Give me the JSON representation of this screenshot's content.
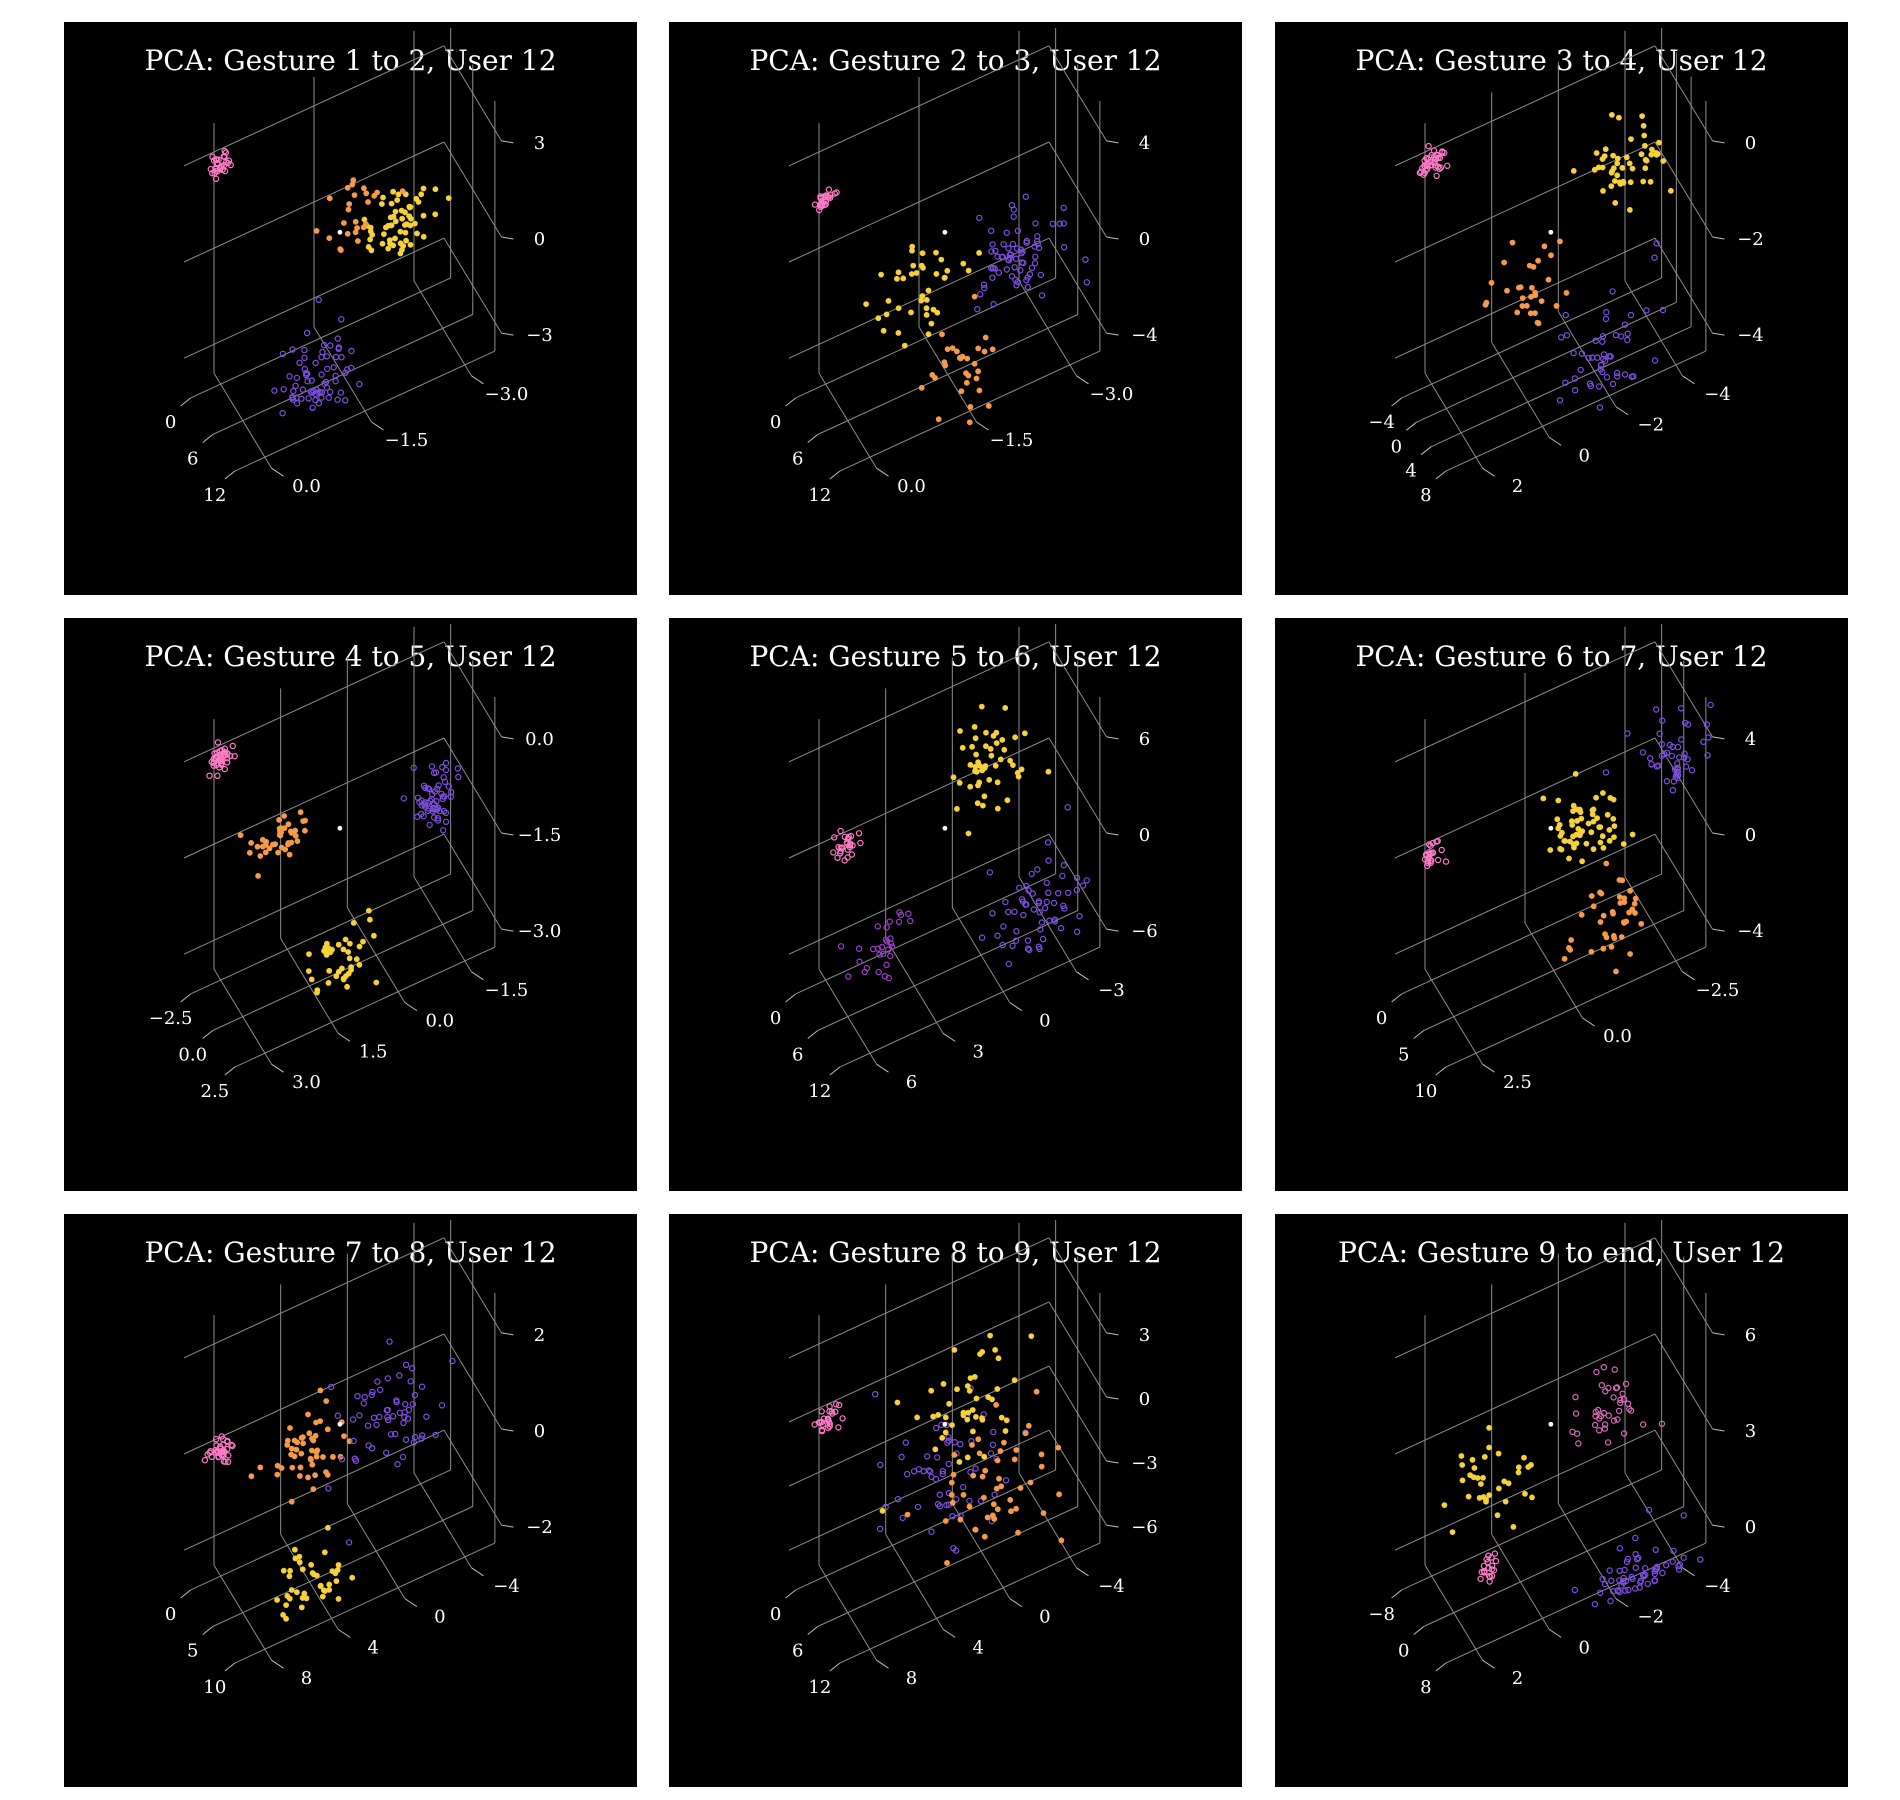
{
  "chart_data": [
    {
      "type": "scatter",
      "title": "PCA: Gesture 1 to 2, User 12",
      "x_ticks": [
        "0",
        "6",
        "12"
      ],
      "y_ticks": [
        "0.0",
        "−1.5",
        "−3.0"
      ],
      "z_ticks": [
        "3",
        "0",
        "−3"
      ],
      "clusters": [
        {
          "color": "#ff7ac8",
          "x": 0,
          "y": 0,
          "z": 3,
          "count": 30,
          "spread": 0.25
        },
        {
          "color": "#f5d13c",
          "x": 6,
          "y": -2.4,
          "z": 0,
          "count": 60,
          "spread": 0.8
        },
        {
          "color": "#7e4fe0",
          "x": 7,
          "y": -1.0,
          "z": -3.5,
          "count": 70,
          "spread": 1.0
        },
        {
          "color": "#f59a4a",
          "x": 4,
          "y": -1.8,
          "z": 0.5,
          "count": 25,
          "spread": 0.8
        }
      ]
    },
    {
      "type": "scatter",
      "title": "PCA: Gesture 2 to 3, User 12",
      "x_ticks": [
        "0",
        "6",
        "12"
      ],
      "y_ticks": [
        "0.0",
        "−1.5",
        "−3.0"
      ],
      "z_ticks": [
        "4",
        "0",
        "−4"
      ],
      "clusters": [
        {
          "color": "#ff7ac8",
          "x": 0,
          "y": 0,
          "z": 2.5,
          "count": 25,
          "spread": 0.25
        },
        {
          "color": "#7e4fe0",
          "x": 8,
          "y": -2.5,
          "z": -1,
          "count": 70,
          "spread": 1.0
        },
        {
          "color": "#f5d13c",
          "x": 4,
          "y": -1.2,
          "z": -2,
          "count": 40,
          "spread": 1.0
        },
        {
          "color": "#f59a4a",
          "x": 10,
          "y": -1.5,
          "z": -4,
          "count": 30,
          "spread": 1.0
        }
      ]
    },
    {
      "type": "scatter",
      "title": "PCA: Gesture 3 to 4, User 12",
      "x_ticks": [
        "−4",
        "0",
        "4",
        "8"
      ],
      "y_ticks": [
        "2",
        "0",
        "−2",
        "−4"
      ],
      "z_ticks": [
        "0",
        "−2",
        "−4"
      ],
      "clusters": [
        {
          "color": "#ff7ac8",
          "x": -4,
          "y": 2,
          "z": 0,
          "count": 40,
          "spread": 0.35
        },
        {
          "color": "#f5d13c",
          "x": 4,
          "y": -3,
          "z": -0.5,
          "count": 50,
          "spread": 0.9
        },
        {
          "color": "#7e4fe0",
          "x": 6,
          "y": -2,
          "z": -4,
          "count": 50,
          "spread": 1.2
        },
        {
          "color": "#f59a4a",
          "x": 2,
          "y": 0,
          "z": -2.5,
          "count": 30,
          "spread": 1.0
        }
      ]
    },
    {
      "type": "scatter",
      "title": "PCA: Gesture 4 to 5, User 12",
      "x_ticks": [
        "−2.5",
        "0.0",
        "2.5"
      ],
      "y_ticks": [
        "3.0",
        "1.5",
        "0.0",
        "−1.5"
      ],
      "z_ticks": [
        "0.0",
        "−1.5",
        "−3.0"
      ],
      "clusters": [
        {
          "color": "#ff7ac8",
          "x": -2.5,
          "y": 3,
          "z": 0,
          "count": 40,
          "spread": 0.3
        },
        {
          "color": "#f59a4a",
          "x": -1,
          "y": 2,
          "z": -1.2,
          "count": 40,
          "spread": 0.6
        },
        {
          "color": "#7e4fe0",
          "x": 1.5,
          "y": -1,
          "z": -1,
          "count": 60,
          "spread": 0.7
        },
        {
          "color": "#f5d13c",
          "x": 1,
          "y": 1,
          "z": -3,
          "count": 40,
          "spread": 0.9
        }
      ]
    },
    {
      "type": "scatter",
      "title": "PCA: Gesture 5 to 6, User 12",
      "x_ticks": [
        "0",
        "6",
        "12"
      ],
      "y_ticks": [
        "6",
        "3",
        "0",
        "−3"
      ],
      "z_ticks": [
        "6",
        "0",
        "−6"
      ],
      "clusters": [
        {
          "color": "#ff7ac8",
          "x": 0,
          "y": 5,
          "z": 0,
          "count": 25,
          "spread": 0.3
        },
        {
          "color": "#f5d13c",
          "x": 8,
          "y": 0,
          "z": 5,
          "count": 50,
          "spread": 1.2
        },
        {
          "color": "#7e4fe0",
          "x": 10,
          "y": -2,
          "z": -5,
          "count": 60,
          "spread": 1.2
        },
        {
          "color": "#9a3fc9",
          "x": 3,
          "y": 4,
          "z": -6,
          "count": 30,
          "spread": 0.8
        }
      ]
    },
    {
      "type": "scatter",
      "title": "PCA: Gesture 6 to 7, User 12",
      "x_ticks": [
        "0",
        "5",
        "10"
      ],
      "y_ticks": [
        "2.5",
        "0.0",
        "−2.5"
      ],
      "z_ticks": [
        "4",
        "0",
        "−4"
      ],
      "clusters": [
        {
          "color": "#ff7ac8",
          "x": 0,
          "y": 2.5,
          "z": 0,
          "count": 25,
          "spread": 0.3
        },
        {
          "color": "#f5d13c",
          "x": 7,
          "y": -0.5,
          "z": 1,
          "count": 60,
          "spread": 0.9
        },
        {
          "color": "#7e4fe0",
          "x": 10,
          "y": -2.5,
          "z": 3.5,
          "count": 45,
          "spread": 0.9
        },
        {
          "color": "#f59a4a",
          "x": 8,
          "y": -1,
          "z": -3,
          "count": 40,
          "spread": 1.0
        }
      ]
    },
    {
      "type": "scatter",
      "title": "PCA: Gesture 7 to 8, User 12",
      "x_ticks": [
        "0",
        "5",
        "10"
      ],
      "y_ticks": [
        "8",
        "4",
        "0",
        "−4"
      ],
      "z_ticks": [
        "2",
        "0",
        "−2"
      ],
      "clusters": [
        {
          "color": "#ff7ac8",
          "x": 0,
          "y": 8,
          "z": 0,
          "count": 35,
          "spread": 0.3
        },
        {
          "color": "#f59a4a",
          "x": 4,
          "y": 4,
          "z": 0,
          "count": 50,
          "spread": 1.0
        },
        {
          "color": "#7e4fe0",
          "x": 8,
          "y": 0,
          "z": 0.5,
          "count": 60,
          "spread": 1.3
        },
        {
          "color": "#f5d13c",
          "x": 6,
          "y": 4,
          "z": -2.5,
          "count": 40,
          "spread": 1.0
        }
      ]
    },
    {
      "type": "scatter",
      "title": "PCA: Gesture 8 to 9, User 12",
      "x_ticks": [
        "0",
        "6",
        "12"
      ],
      "y_ticks": [
        "8",
        "4",
        "0",
        "−4"
      ],
      "z_ticks": [
        "3",
        "0",
        "−3",
        "−6"
      ],
      "clusters": [
        {
          "color": "#ff7ac8",
          "x": 0,
          "y": 8,
          "z": 0,
          "count": 25,
          "spread": 0.3
        },
        {
          "color": "#7e4fe0",
          "x": 6,
          "y": 2,
          "z": -3,
          "count": 60,
          "spread": 1.5
        },
        {
          "color": "#f59a4a",
          "x": 10,
          "y": 0,
          "z": -3,
          "count": 50,
          "spread": 1.3
        },
        {
          "color": "#f5d13c",
          "x": 10,
          "y": 2,
          "z": 1,
          "count": 45,
          "spread": 1.5
        }
      ]
    },
    {
      "type": "scatter",
      "title": "PCA: Gesture 9 to end, User 12",
      "x_ticks": [
        "−8",
        "0",
        "8"
      ],
      "y_ticks": [
        "2",
        "0",
        "−2",
        "−4"
      ],
      "z_ticks": [
        "6",
        "3",
        "0"
      ],
      "clusters": [
        {
          "color": "#ff7ac8",
          "x": 0,
          "y": 1,
          "z": 0,
          "count": 20,
          "spread": 0.3
        },
        {
          "color": "#f5d13c",
          "x": 2,
          "y": 1,
          "z": 3,
          "count": 35,
          "spread": 1.0
        },
        {
          "color": "#d96ab8",
          "x": 10,
          "y": -2,
          "z": 5,
          "count": 40,
          "spread": 1.0
        },
        {
          "color": "#7e4fe0",
          "x": 8,
          "y": -3,
          "z": -1.5,
          "count": 60,
          "spread": 1.2
        }
      ]
    }
  ]
}
